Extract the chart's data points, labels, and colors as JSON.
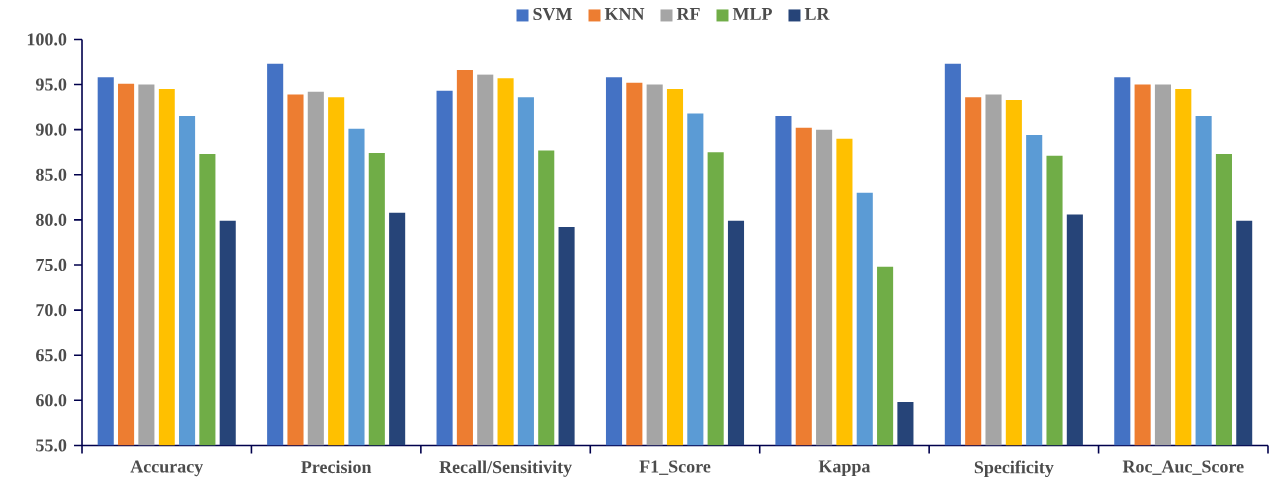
{
  "chart_data": {
    "type": "bar",
    "categories": [
      "Accuracy",
      "Precision",
      "Recall/Sensitivity",
      "F1_Score",
      "Kappa",
      "Specificity",
      "Roc_Auc_Score"
    ],
    "series": [
      {
        "name": "SVM",
        "color": "#4472c4",
        "values": [
          95.8,
          97.3,
          94.3,
          95.8,
          91.5,
          97.3,
          95.8
        ]
      },
      {
        "name": "KNN",
        "color": "#ed7d31",
        "values": [
          95.1,
          93.9,
          96.6,
          95.2,
          90.2,
          93.6,
          95.0
        ]
      },
      {
        "name": "RF",
        "color": "#a5a5a5",
        "values": [
          95.0,
          94.2,
          96.1,
          95.0,
          90.0,
          93.9,
          95.0
        ]
      },
      {
        "color": "#ffc000",
        "values": [
          94.5,
          93.6,
          95.7,
          94.5,
          89.0,
          93.3,
          94.5
        ]
      },
      {
        "color": "#5b9bd5",
        "values": [
          91.5,
          90.1,
          93.6,
          91.8,
          83.0,
          89.4,
          91.5
        ]
      },
      {
        "name": "MLP",
        "color": "#70ad47",
        "values": [
          87.3,
          87.4,
          87.7,
          87.5,
          74.8,
          87.1,
          87.3
        ]
      },
      {
        "name": "LR",
        "color": "#264478",
        "values": [
          79.9,
          80.8,
          79.2,
          79.9,
          59.8,
          80.6,
          79.9
        ]
      }
    ],
    "ylim": [
      55,
      100
    ],
    "yticks": [
      {
        "value": 55,
        "label": "55.0"
      },
      {
        "value": 60,
        "label": "60.0"
      },
      {
        "value": 65,
        "label": "65.0"
      },
      {
        "value": 70,
        "label": "70.0"
      },
      {
        "value": 75,
        "label": "75.0"
      },
      {
        "value": 80,
        "label": "80.0"
      },
      {
        "value": 85,
        "label": "85.0"
      },
      {
        "value": 90,
        "label": "90.0"
      },
      {
        "value": 95,
        "label": "95.0"
      },
      {
        "value": 100,
        "label": "100.0"
      }
    ],
    "grid": false,
    "legend": "top"
  }
}
